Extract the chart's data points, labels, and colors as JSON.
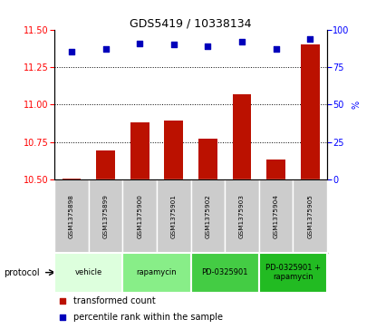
{
  "title": "GDS5419 / 10338134",
  "samples": [
    "GSM1375898",
    "GSM1375899",
    "GSM1375900",
    "GSM1375901",
    "GSM1375902",
    "GSM1375903",
    "GSM1375904",
    "GSM1375905"
  ],
  "bar_values": [
    10.504,
    10.695,
    10.88,
    10.895,
    10.77,
    11.07,
    10.63,
    11.4
  ],
  "dot_values": [
    85,
    87,
    91,
    90,
    89,
    92,
    87,
    94
  ],
  "ylim_left": [
    10.5,
    11.5
  ],
  "ylim_right": [
    0,
    100
  ],
  "yticks_left": [
    10.5,
    10.75,
    11.0,
    11.25,
    11.5
  ],
  "yticks_right": [
    0,
    25,
    50,
    75,
    100
  ],
  "bar_color": "#bb1100",
  "dot_color": "#0000bb",
  "protocol_groups": [
    {
      "label": "vehicle",
      "indices": [
        0,
        1
      ],
      "color": "#ddffdd"
    },
    {
      "label": "rapamycin",
      "indices": [
        2,
        3
      ],
      "color": "#88ee88"
    },
    {
      "label": "PD-0325901",
      "indices": [
        4,
        5
      ],
      "color": "#44cc44"
    },
    {
      "label": "PD-0325901 +\nrapamycin",
      "indices": [
        6,
        7
      ],
      "color": "#22bb22"
    }
  ],
  "sample_bg_color": "#cccccc",
  "dotted_yticks": [
    10.75,
    11.0,
    11.25
  ],
  "legend_bar_label": "transformed count",
  "legend_dot_label": "percentile rank within the sample",
  "protocol_label": "protocol"
}
